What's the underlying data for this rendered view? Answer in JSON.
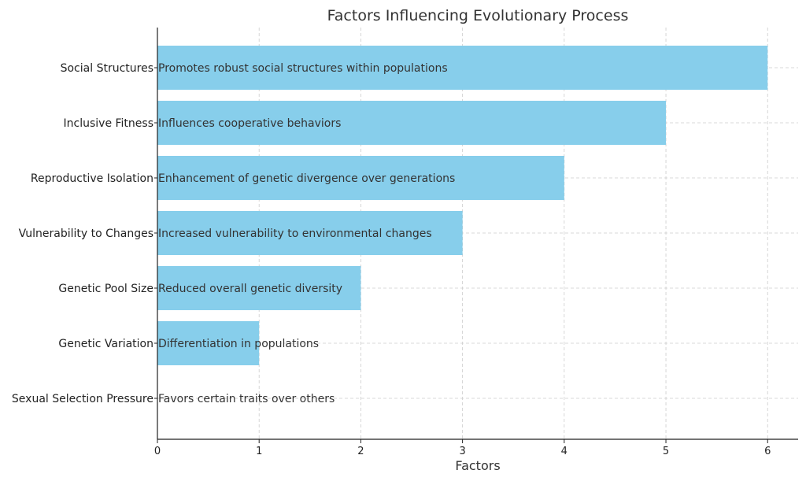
{
  "chart_data": {
    "type": "bar",
    "orientation": "horizontal",
    "title": "Factors Influencing Evolutionary Process",
    "xlabel": "Factors",
    "ylabel": "",
    "xlim": [
      0,
      6.3
    ],
    "xticks": [
      0,
      1,
      2,
      3,
      4,
      5,
      6
    ],
    "grid": true,
    "bar_color": "#87CEEB",
    "categories": [
      "Social Structures",
      "Inclusive Fitness",
      "Reproductive Isolation",
      "Vulnerability to Changes",
      "Genetic Pool Size",
      "Genetic Variation",
      "Sexual Selection Pressure"
    ],
    "values": [
      6,
      5,
      4,
      3,
      2,
      1,
      0
    ],
    "annotations": [
      "Promotes robust social structures within populations",
      "Influences cooperative behaviors",
      "Enhancement of genetic divergence over generations",
      "Increased vulnerability to environmental changes",
      "Reduced overall genetic diversity",
      "Differentiation in populations",
      "Favors certain traits over others"
    ]
  }
}
